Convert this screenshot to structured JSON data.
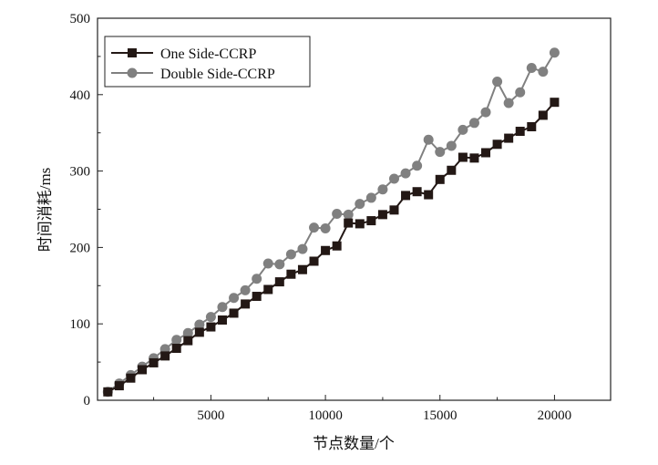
{
  "chart_data": {
    "type": "line",
    "title": "",
    "xlabel": "节点数量/个",
    "ylabel": "时间消耗/ms",
    "xlim": [
      50,
      22450
    ],
    "ylim": [
      0,
      500
    ],
    "xticks": [
      5000,
      10000,
      15000,
      20000
    ],
    "yticks": [
      0,
      100,
      200,
      300,
      400,
      500
    ],
    "xtick_labels": [
      "5000",
      "10000",
      "15000",
      "20000"
    ],
    "ytick_labels": [
      "0",
      "100",
      "200",
      "300",
      "400",
      "500"
    ],
    "grid": false,
    "legend_position": "top-left",
    "x": [
      500,
      1000,
      1500,
      2000,
      2500,
      3000,
      3500,
      4000,
      4500,
      5000,
      5500,
      6000,
      6500,
      7000,
      7500,
      8000,
      8500,
      9000,
      9500,
      10000,
      10500,
      11000,
      11500,
      12000,
      12500,
      13000,
      13500,
      14000,
      14500,
      15000,
      15500,
      16000,
      16500,
      17000,
      17500,
      18000,
      18500,
      19000,
      19500,
      20000
    ],
    "series": [
      {
        "name": "One Side-CCRP",
        "marker": "square",
        "color": "#231815",
        "values": [
          11,
          19,
          29,
          40,
          49,
          58,
          68,
          78,
          89,
          96,
          105,
          114,
          126,
          136,
          145,
          155,
          165,
          171,
          182,
          196,
          202,
          232,
          231,
          235,
          243,
          249,
          268,
          273,
          269,
          289,
          301,
          318,
          317,
          324,
          335,
          343,
          352,
          358,
          373,
          390
        ]
      },
      {
        "name": "Double Side-CCRP",
        "marker": "circle",
        "color": "#808080",
        "values": [
          11,
          22,
          33,
          44,
          55,
          67,
          79,
          88,
          99,
          109,
          122,
          134,
          144,
          159,
          179,
          178,
          191,
          198,
          226,
          225,
          244,
          243,
          257,
          265,
          276,
          290,
          297,
          307,
          341,
          325,
          333,
          354,
          363,
          377,
          417,
          389,
          403,
          435,
          430,
          455
        ]
      }
    ]
  }
}
